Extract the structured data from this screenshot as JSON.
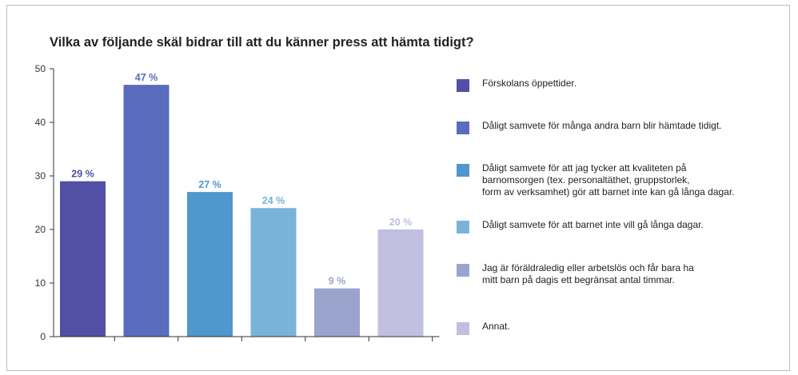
{
  "chart_data": {
    "type": "bar",
    "title": "Vilka av följande skäl bidrar till att du känner press att hämta tidigt?",
    "xlabel": "",
    "ylabel": "",
    "ylim": [
      0,
      50
    ],
    "yticks": [
      0,
      10,
      20,
      30,
      40,
      50
    ],
    "grid": false,
    "legend_position": "right",
    "categories": [
      "Förskolans öppettider.",
      "Dåligt samvete för många andra barn blir hämtade tidigt.",
      "Dåligt samvete för att jag tycker att kvaliteten på\nbarnomsorgen (tex. personaltäthet, gruppstorlek,\nform av verksamhet) gör att barnet inte kan gå långa dagar.",
      "Dåligt samvete för att barnet inte vill gå långa dagar.",
      "Jag är föräldraledig eller arbetslös och får bara ha\nmitt barn på dagis ett begränsat antal timmar.",
      "Annat."
    ],
    "values": [
      29,
      47,
      27,
      24,
      9,
      20
    ],
    "data_labels": [
      "29 %",
      "47 %",
      "27 %",
      "24 %",
      "9 %",
      "20 %"
    ],
    "colors": [
      "#5150a6",
      "#5a6cbd",
      "#4f97cc",
      "#79b3d9",
      "#9aa4cd",
      "#c1bfdf"
    ]
  }
}
